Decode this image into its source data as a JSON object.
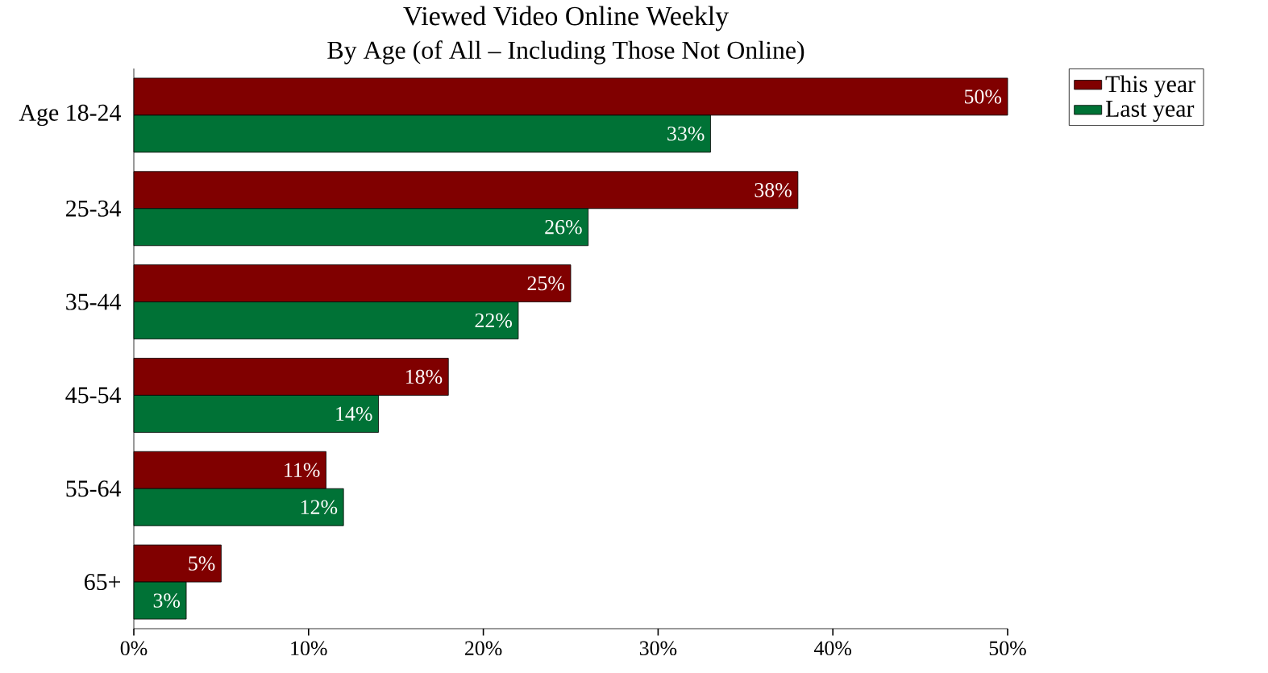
{
  "chart_data": {
    "type": "bar",
    "orientation": "horizontal",
    "title": "Viewed Video Online Weekly",
    "subtitle": "By Age (of All – Including Those Not Online)",
    "categories": [
      "Age 18-24",
      "25-34",
      "35-44",
      "45-54",
      "55-64",
      "65+"
    ],
    "series": [
      {
        "name": "This year",
        "color": "#800000",
        "values": [
          50,
          38,
          25,
          18,
          11,
          5
        ],
        "value_labels": [
          "50%",
          "38%",
          "25%",
          "18%",
          "11%",
          "5%"
        ]
      },
      {
        "name": "Last year",
        "color": "#007236",
        "values": [
          33,
          26,
          22,
          14,
          12,
          3
        ],
        "value_labels": [
          "33%",
          "26%",
          "22%",
          "14%",
          "12%",
          "3%"
        ]
      }
    ],
    "xlim": [
      0,
      50
    ],
    "xticks": [
      {
        "value": 0,
        "label": "0%"
      },
      {
        "value": 10,
        "label": "10%"
      },
      {
        "value": 20,
        "label": "20%"
      },
      {
        "value": 30,
        "label": "30%"
      },
      {
        "value": 40,
        "label": "40%"
      },
      {
        "value": 50,
        "label": "50%"
      }
    ],
    "legend": "top right",
    "grid": false
  }
}
